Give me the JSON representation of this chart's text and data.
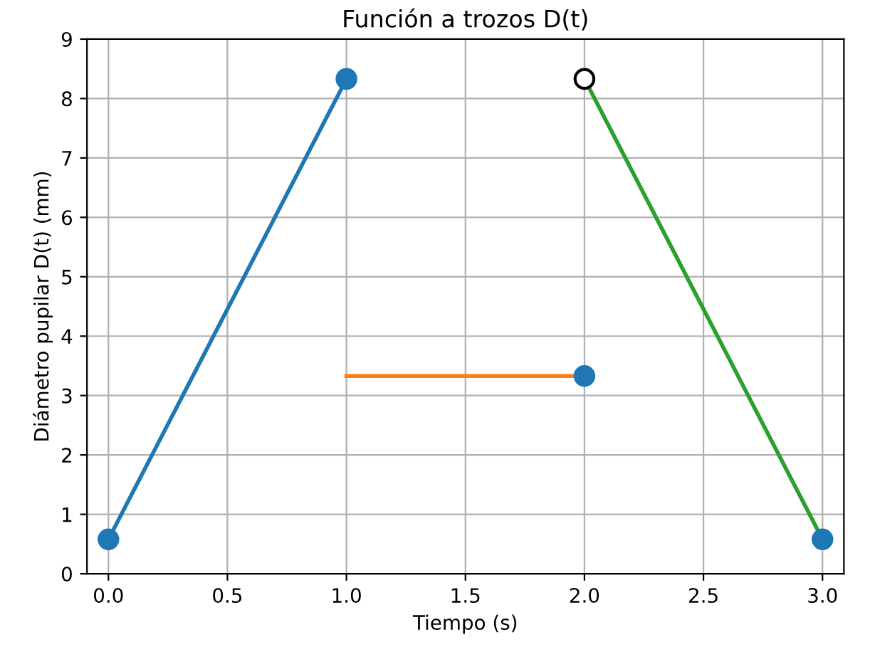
{
  "chart_data": {
    "type": "line",
    "title": "Función a trozos D(t)",
    "xlabel": "Tiempo (s)",
    "ylabel": "Diámetro pupilar D(t) (mm)",
    "series": [
      {
        "color": "#1f77b4",
        "x": [
          0,
          1
        ],
        "values": [
          0.58,
          8.33
        ]
      },
      {
        "color": "#ff7f0e",
        "x": [
          1,
          2
        ],
        "values": [
          3.33,
          3.33
        ]
      },
      {
        "color": "#2ca02c",
        "x": [
          2,
          3
        ],
        "values": [
          8.33,
          0.58
        ]
      },
      {
        "type": "scatter",
        "marker": "circle",
        "color": "#1f77b4",
        "x": [
          0,
          1,
          2,
          3
        ],
        "values": [
          0.58,
          8.33,
          3.33,
          0.58
        ]
      },
      {
        "type": "scatter",
        "marker": "circle",
        "color": "#000000",
        "colors": [
          "#ffffff"
        ],
        "x": [
          2
        ],
        "values": [
          8.33
        ]
      }
    ],
    "xlim": [
      -0.09,
      3.09
    ],
    "xticks": [
      {
        "value": 0,
        "label": "0.0"
      },
      {
        "value": 0.5,
        "label": "0.5"
      },
      {
        "value": 1,
        "label": "1.0"
      },
      {
        "value": 1.5,
        "label": "1.5"
      },
      {
        "value": 2,
        "label": "2.0"
      },
      {
        "value": 2.5,
        "label": "2.5"
      },
      {
        "value": 3,
        "label": "3.0"
      }
    ],
    "ylim": [
      0,
      9
    ],
    "yticks": [
      0,
      1,
      2,
      3,
      4,
      5,
      6,
      7,
      8,
      9
    ],
    "grid": true
  }
}
